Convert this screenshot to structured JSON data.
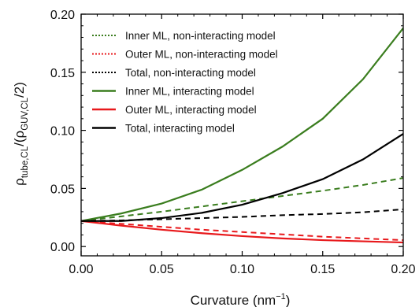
{
  "chart_data": {
    "type": "line",
    "xlabel": "Curvature (nm⁻¹)",
    "ylabel": "ρtube,CL/(ρGUV,CL/2)",
    "xlim": [
      0.0,
      0.2
    ],
    "ylim": [
      -0.008,
      0.2
    ],
    "xticks": [
      0.0,
      0.05,
      0.1,
      0.15,
      0.2
    ],
    "xtick_labels": [
      "0.00",
      "0.05",
      "0.10",
      "0.15",
      "0.20"
    ],
    "yticks": [
      0.0,
      0.05,
      0.1,
      0.15,
      0.2
    ],
    "ytick_labels": [
      "0.00",
      "0.05",
      "0.10",
      "0.15",
      "0.20"
    ],
    "grid": false,
    "legend_position": "top-left",
    "x": [
      0.0,
      0.025,
      0.05,
      0.075,
      0.1,
      0.125,
      0.15,
      0.175,
      0.2
    ],
    "series": [
      {
        "name": "Inner ML, non-interacting model",
        "color": "#3a7d1e",
        "dash": "dotted",
        "values": [
          0.022,
          0.026,
          0.03,
          0.0345,
          0.039,
          0.0435,
          0.048,
          0.053,
          0.059
        ]
      },
      {
        "name": "Outer ML, non-interacting model",
        "color": "#e8191c",
        "dash": "dotted",
        "values": [
          0.022,
          0.0195,
          0.017,
          0.0145,
          0.0125,
          0.0105,
          0.0085,
          0.007,
          0.0055
        ]
      },
      {
        "name": "Total, non-interacting model",
        "color": "#000000",
        "dash": "dotted",
        "values": [
          0.022,
          0.0225,
          0.0235,
          0.0245,
          0.0255,
          0.027,
          0.028,
          0.0295,
          0.032
        ]
      },
      {
        "name": "Inner ML, interacting model",
        "color": "#3a7d1e",
        "dash": "solid",
        "values": [
          0.022,
          0.0285,
          0.037,
          0.049,
          0.066,
          0.086,
          0.11,
          0.144,
          0.188
        ]
      },
      {
        "name": "Outer ML, interacting model",
        "color": "#e8191c",
        "dash": "solid",
        "values": [
          0.022,
          0.018,
          0.0145,
          0.0115,
          0.009,
          0.007,
          0.0055,
          0.0045,
          0.0035
        ]
      },
      {
        "name": "Total, interacting model",
        "color": "#000000",
        "dash": "solid",
        "values": [
          0.022,
          0.022,
          0.0245,
          0.029,
          0.036,
          0.046,
          0.058,
          0.075,
          0.097
        ]
      }
    ]
  }
}
